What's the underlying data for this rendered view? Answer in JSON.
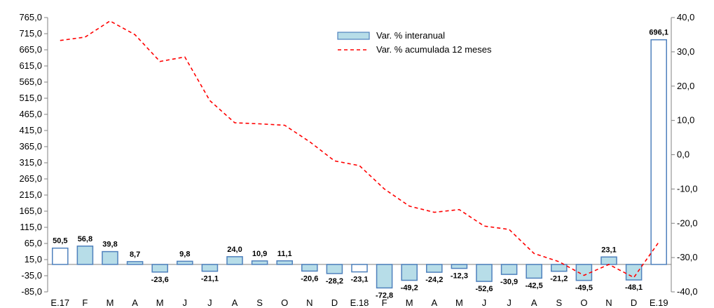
{
  "chart_data": {
    "type": "bar",
    "categories": [
      "E.17",
      "F",
      "M",
      "A",
      "M",
      "J",
      "J",
      "A",
      "S",
      "O",
      "N",
      "D",
      "E.18",
      "F",
      "M",
      "A",
      "M",
      "J",
      "J",
      "A",
      "S",
      "O",
      "N",
      "D",
      "E.19"
    ],
    "series": [
      {
        "name": "Var. % interanual",
        "type": "bar",
        "axis": "left",
        "values": [
          50.5,
          56.8,
          39.8,
          8.7,
          -23.6,
          9.8,
          -21.1,
          24.0,
          10.9,
          11.1,
          -20.6,
          -28.2,
          -23.1,
          -72.8,
          -49.2,
          -24.2,
          -12.3,
          -52.6,
          -30.9,
          -42.5,
          -21.2,
          -49.5,
          23.1,
          -48.1,
          696.1
        ],
        "labels": [
          "50,5",
          "56,8",
          "39,8",
          "8,7",
          "-23,6",
          "9,8",
          "-21,1",
          "24,0",
          "10,9",
          "11,1",
          "-20,6",
          "-28,2",
          "-23,1",
          "-72,8",
          "-49,2",
          "-24,2",
          "-12,3",
          "-52,6",
          "-30,9",
          "-42,5",
          "-21,2",
          "-49,5",
          "23,1",
          "-48,1",
          "696,1"
        ],
        "highlighted": [
          0,
          12,
          24
        ],
        "color": "#b7dde8",
        "highlight_color": "#ffffff",
        "border_color": "#4f81bd"
      },
      {
        "name": "Var. % acumulada 12 meses",
        "type": "line",
        "axis": "right",
        "values": [
          33.3,
          34.3,
          39.0,
          35.0,
          27.2,
          28.5,
          15.8,
          9.3,
          9.0,
          8.6,
          3.8,
          -1.8,
          -3.2,
          -10.0,
          -15.0,
          -16.8,
          -16.0,
          -20.8,
          -21.8,
          -28.8,
          -31.2,
          -35.2,
          -32.0,
          -35.8,
          -25.5
        ],
        "color": "#ff0000",
        "dash": "dashed"
      }
    ],
    "y_left": {
      "ylim": [
        -85,
        765
      ],
      "ticks": [
        -85,
        -35,
        15,
        65,
        115,
        165,
        215,
        265,
        315,
        365,
        415,
        465,
        515,
        565,
        615,
        665,
        715,
        765
      ],
      "tick_labels": [
        "-85,0",
        "-35,0",
        "15,0",
        "65,0",
        "115,0",
        "165,0",
        "215,0",
        "265,0",
        "315,0",
        "365,0",
        "415,0",
        "465,0",
        "515,0",
        "565,0",
        "615,0",
        "665,0",
        "715,0",
        "765,0"
      ]
    },
    "y_right": {
      "ylim": [
        -40,
        40
      ],
      "ticks": [
        -40,
        -30,
        -20,
        -10,
        0,
        10,
        20,
        30,
        40
      ],
      "tick_labels": [
        "-40,0",
        "-30,0",
        "-20,0",
        "-10,0",
        "0,0",
        "10,0",
        "20,0",
        "30,0",
        "40,0"
      ]
    },
    "baseline": 0,
    "title": "",
    "xlabel": "",
    "ylabel": "",
    "grid": false,
    "legend_position": "top-center"
  }
}
